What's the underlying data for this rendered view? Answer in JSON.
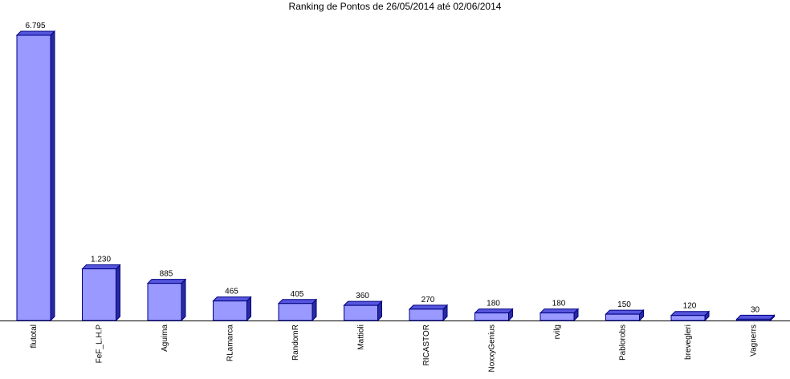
{
  "chart_data": {
    "type": "bar3d",
    "title": "Ranking de Pontos de 26/05/2014 até 02/06/2014",
    "categories": [
      "flutotal",
      "FeF_L.H.P",
      "Aguima",
      "RLamarca",
      "RandomR",
      "Mattioli",
      "RICASTOR",
      "NoxxyGenius",
      "rvilg",
      "Pablorobs",
      "brevegleri",
      "Vagnerrs"
    ],
    "values": [
      6795,
      1230,
      885,
      465,
      405,
      360,
      270,
      180,
      180,
      150,
      120,
      30
    ],
    "value_labels": [
      "6.795",
      "1.230",
      "885",
      "465",
      "405",
      "360",
      "270",
      "180",
      "180",
      "150",
      "120",
      "30"
    ],
    "color": "#9999ff"
  }
}
